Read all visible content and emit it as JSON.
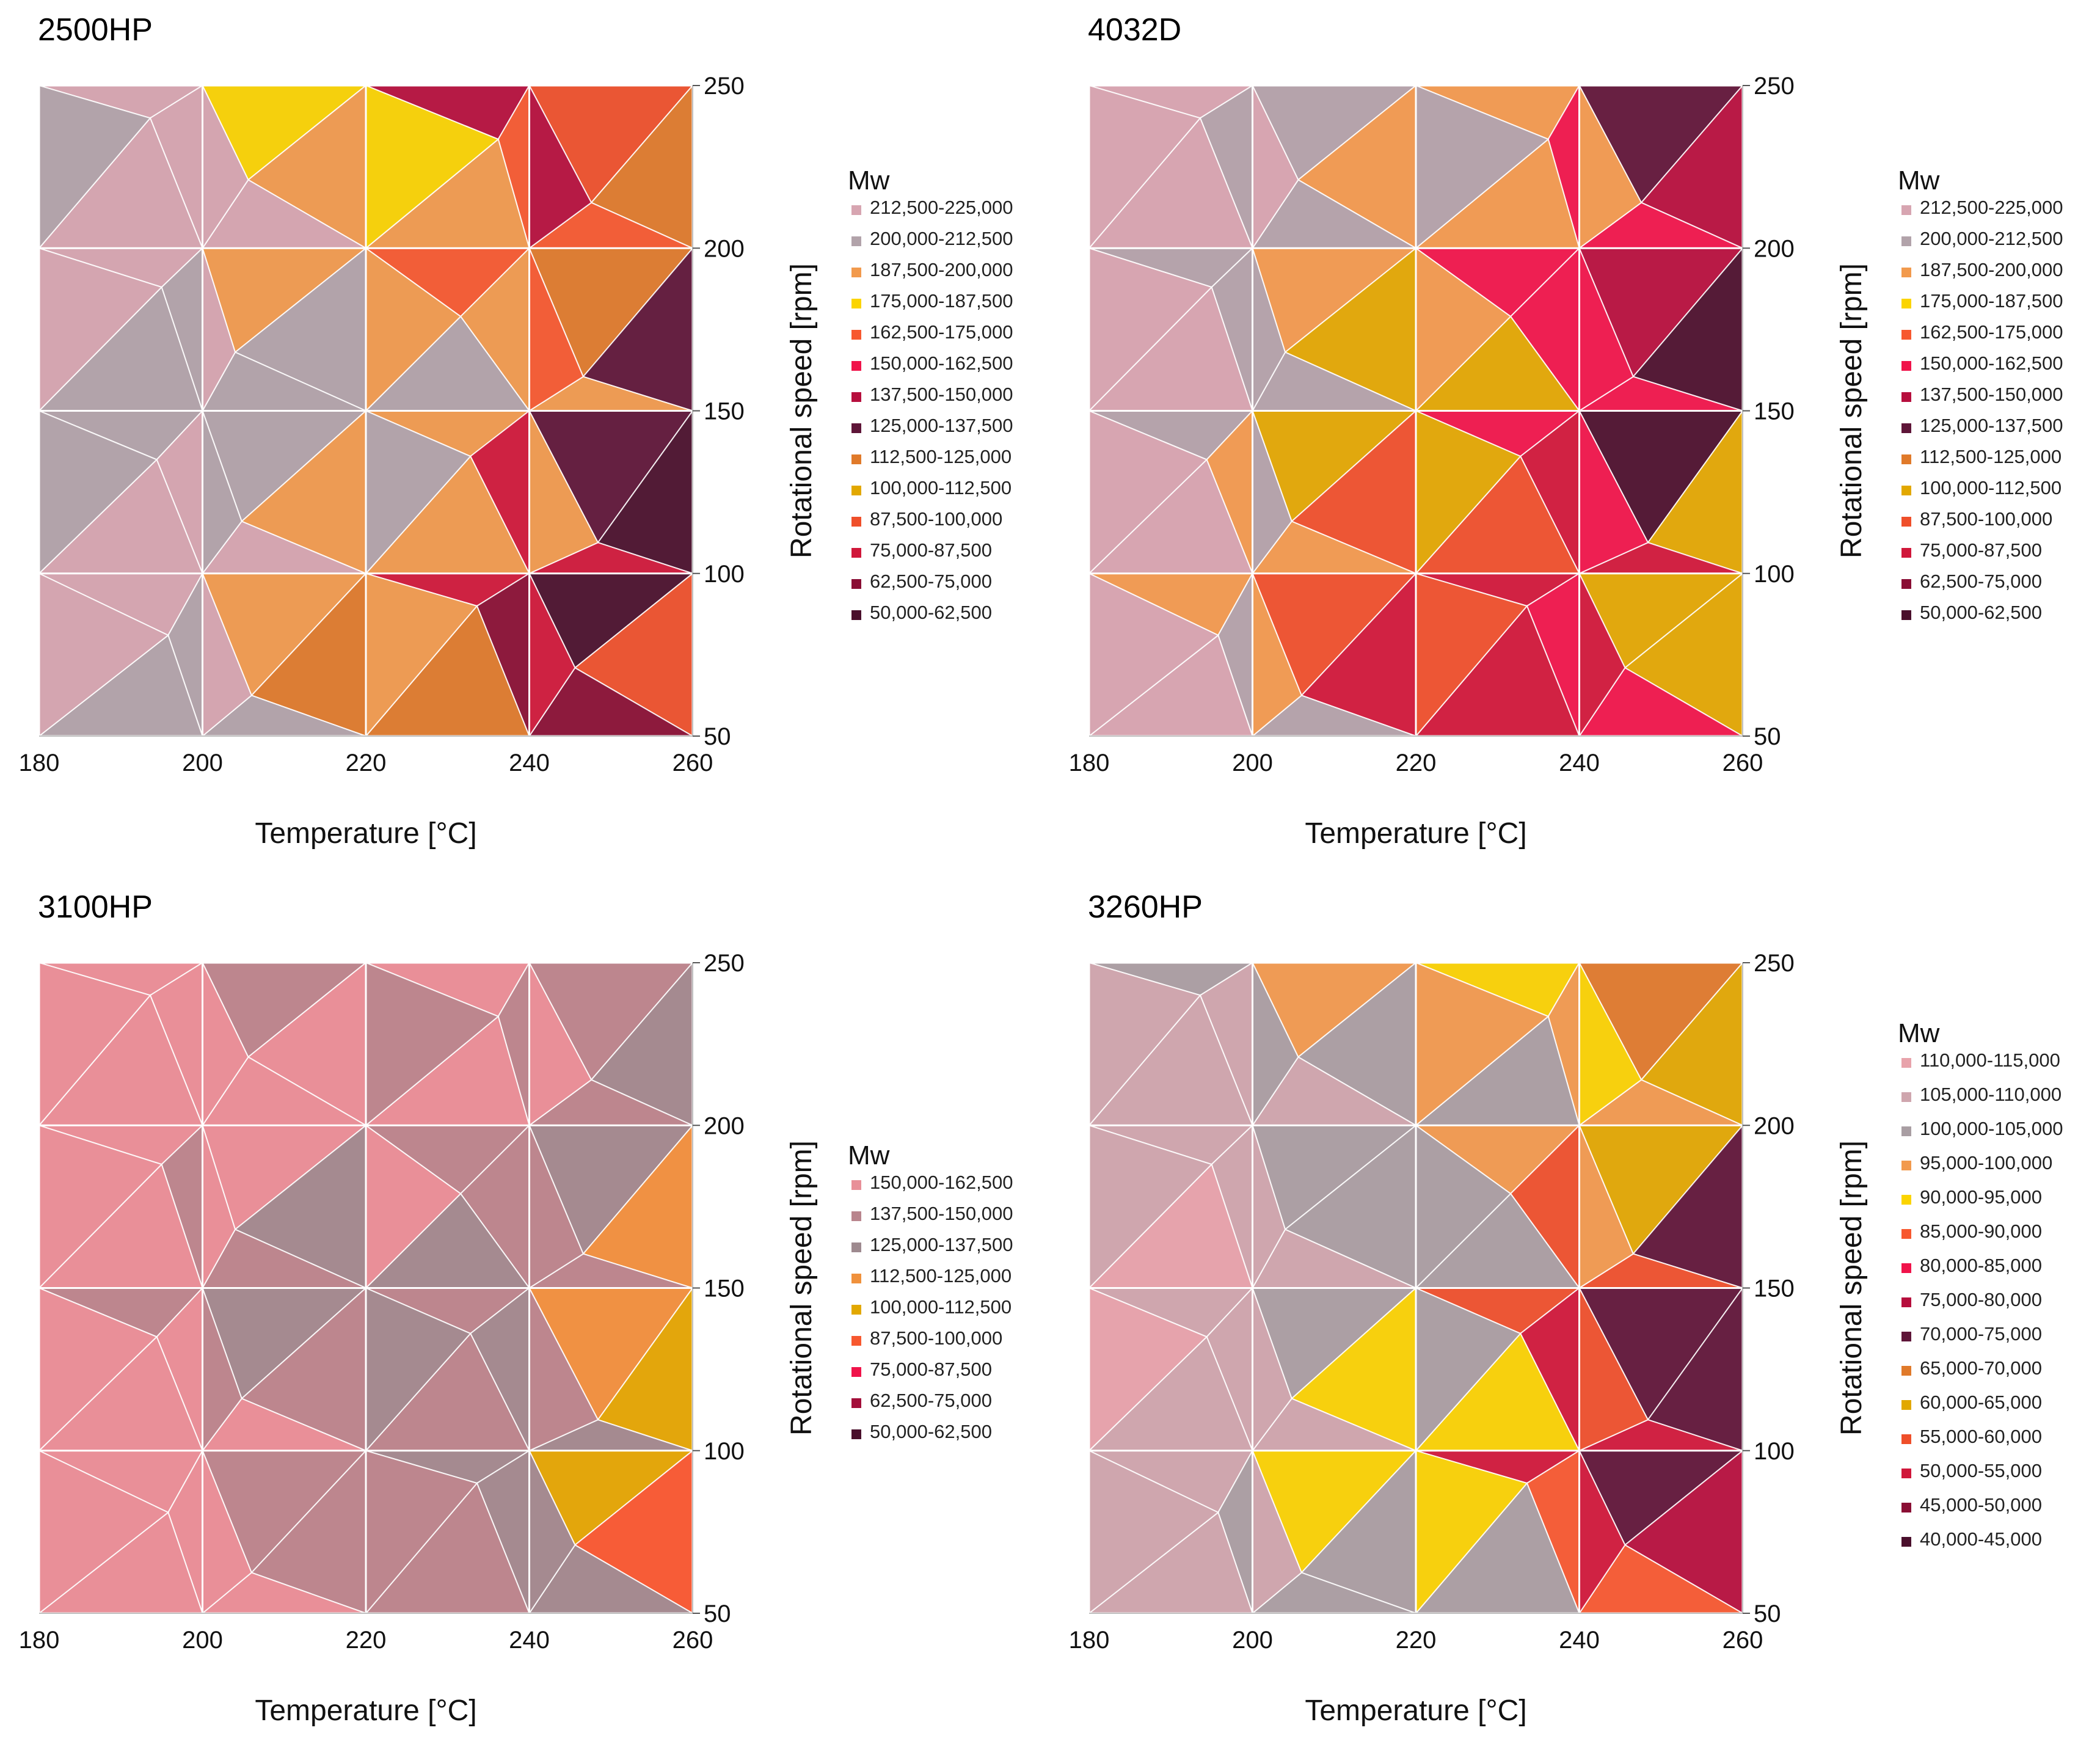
{
  "chart_data": [
    {
      "type": "heatmap",
      "subtype": "contour",
      "title": "2500HP",
      "xlabel": "Temperature [°C]",
      "ylabel": "Rotational speed [rpm]",
      "xlim": [
        180,
        260
      ],
      "ylim": [
        50,
        250
      ],
      "x_ticks": [
        "180",
        "200",
        "220",
        "240",
        "260"
      ],
      "y_ticks": [
        "250",
        "200",
        "150",
        "100",
        "50"
      ],
      "x": [
        180,
        200,
        220,
        240,
        260
      ],
      "y": [
        250,
        200,
        150,
        100,
        50
      ],
      "z_band_index": [
        [
          1,
          0,
          3,
          6,
          10
        ],
        [
          0,
          0,
          2,
          4,
          8
        ],
        [
          1,
          1,
          1,
          2,
          7
        ],
        [
          0,
          0,
          2,
          11,
          13
        ],
        [
          1,
          1,
          8,
          12,
          10
        ]
      ],
      "legend_title": "Mw",
      "legend": [
        {
          "label": "212,500-225,000",
          "color": "#d7a5b1"
        },
        {
          "label": "200,000-212,500",
          "color": "#b2a3aa"
        },
        {
          "label": "187,500-200,000",
          "color": "#f29a4d"
        },
        {
          "label": "175,000-187,500",
          "color": "#fbd400"
        },
        {
          "label": "162,500-175,000",
          "color": "#f7582f"
        },
        {
          "label": "150,000-162,500",
          "color": "#f0134a"
        },
        {
          "label": "137,500-150,000",
          "color": "#b60e3d"
        },
        {
          "label": "125,000-137,500",
          "color": "#5e1538"
        },
        {
          "label": "112,500-125,000",
          "color": "#e07a2a"
        },
        {
          "label": "100,000-112,500",
          "color": "#e2a800"
        },
        {
          "label": "87,500-100,000",
          "color": "#ef4f2a"
        },
        {
          "label": "75,000-87,500",
          "color": "#d0173a"
        },
        {
          "label": "62,500-75,000",
          "color": "#8a0e34"
        },
        {
          "label": "50,000-62,500",
          "color": "#4a0f2c"
        }
      ]
    },
    {
      "type": "heatmap",
      "subtype": "contour",
      "title": "4032D",
      "xlabel": "Temperature [°C]",
      "ylabel": "Rotational speed [rpm]",
      "xlim": [
        180,
        260
      ],
      "ylim": [
        50,
        250
      ],
      "x_ticks": [
        "180",
        "200",
        "220",
        "240",
        "260"
      ],
      "y_ticks": [
        "250",
        "200",
        "150",
        "100",
        "50"
      ],
      "x": [
        180,
        200,
        220,
        240,
        260
      ],
      "y": [
        250,
        200,
        150,
        100,
        50
      ],
      "z_band_index": [
        [
          0,
          0,
          1,
          2,
          7
        ],
        [
          0,
          1,
          2,
          5,
          6
        ],
        [
          0,
          1,
          9,
          5,
          13
        ],
        [
          0,
          2,
          10,
          11,
          9
        ],
        [
          0,
          1,
          11,
          5,
          9
        ]
      ],
      "legend_title": "Mw",
      "legend": [
        {
          "label": "212,500-225,000",
          "color": "#d7a5b1"
        },
        {
          "label": "200,000-212,500",
          "color": "#b2a3aa"
        },
        {
          "label": "187,500-200,000",
          "color": "#f29a4d"
        },
        {
          "label": "175,000-187,500",
          "color": "#fbd400"
        },
        {
          "label": "162,500-175,000",
          "color": "#f7582f"
        },
        {
          "label": "150,000-162,500",
          "color": "#f0134a"
        },
        {
          "label": "137,500-150,000",
          "color": "#b60e3d"
        },
        {
          "label": "125,000-137,500",
          "color": "#5e1538"
        },
        {
          "label": "112,500-125,000",
          "color": "#e07a2a"
        },
        {
          "label": "100,000-112,500",
          "color": "#e2a800"
        },
        {
          "label": "87,500-100,000",
          "color": "#ef4f2a"
        },
        {
          "label": "75,000-87,500",
          "color": "#d0173a"
        },
        {
          "label": "62,500-75,000",
          "color": "#8a0e34"
        },
        {
          "label": "50,000-62,500",
          "color": "#4a0f2c"
        }
      ]
    },
    {
      "type": "heatmap",
      "subtype": "contour",
      "title": "3100HP",
      "xlabel": "Temperature [°C]",
      "ylabel": "Rotational speed [rpm]",
      "xlim": [
        180,
        260
      ],
      "ylim": [
        50,
        250
      ],
      "x_ticks": [
        "180",
        "200",
        "220",
        "240",
        "260"
      ],
      "y_ticks": [
        "250",
        "200",
        "150",
        "100",
        "50"
      ],
      "x": [
        180,
        200,
        220,
        240,
        260
      ],
      "y": [
        250,
        200,
        150,
        100,
        50
      ],
      "z_band_index": [
        [
          0,
          0,
          1,
          0,
          1
        ],
        [
          0,
          0,
          0,
          1,
          2
        ],
        [
          0,
          1,
          2,
          1,
          3
        ],
        [
          0,
          0,
          1,
          2,
          4
        ],
        [
          0,
          0,
          1,
          2,
          5
        ]
      ],
      "legend_title": "Mw",
      "legend": [
        {
          "label": "150,000-162,500",
          "color": "#e88f98"
        },
        {
          "label": "137,500-150,000",
          "color": "#b9858d"
        },
        {
          "label": "125,000-137,500",
          "color": "#9e8a8f"
        },
        {
          "label": "112,500-125,000",
          "color": "#f0913c"
        },
        {
          "label": "100,000-112,500",
          "color": "#e2a800"
        },
        {
          "label": "87,500-100,000",
          "color": "#f7582f"
        },
        {
          "label": "75,000-87,500",
          "color": "#f0134a"
        },
        {
          "label": "62,500-75,000",
          "color": "#a30e3a"
        },
        {
          "label": "50,000-62,500",
          "color": "#4a0f2c"
        }
      ]
    },
    {
      "type": "heatmap",
      "subtype": "contour",
      "title": "3260HP",
      "xlabel": "Temperature [°C]",
      "ylabel": "Rotational speed [rpm]",
      "xlim": [
        180,
        260
      ],
      "ylim": [
        50,
        250
      ],
      "x_ticks": [
        "180",
        "200",
        "220",
        "240",
        "260"
      ],
      "y_ticks": [
        "250",
        "200",
        "150",
        "100",
        "50"
      ],
      "x": [
        180,
        200,
        220,
        240,
        260
      ],
      "y": [
        250,
        200,
        150,
        100,
        50
      ],
      "z_band_index": [
        [
          1,
          2,
          3,
          4,
          9
        ],
        [
          1,
          1,
          2,
          3,
          10
        ],
        [
          0,
          1,
          2,
          11,
          8
        ],
        [
          1,
          1,
          4,
          12,
          8
        ],
        [
          1,
          2,
          2,
          5,
          7
        ]
      ],
      "legend_title": "Mw",
      "legend": [
        {
          "label": "110,000-115,000",
          "color": "#e8a3ab"
        },
        {
          "label": "105,000-110,000",
          "color": "#cfa6ae"
        },
        {
          "label": "100,000-105,000",
          "color": "#a99ea3"
        },
        {
          "label": "95,000-100,000",
          "color": "#f29a4d"
        },
        {
          "label": "90,000-95,000",
          "color": "#fbd400"
        },
        {
          "label": "85,000-90,000",
          "color": "#f7582f"
        },
        {
          "label": "80,000-85,000",
          "color": "#f0134a"
        },
        {
          "label": "75,000-80,000",
          "color": "#b60e3d"
        },
        {
          "label": "70,000-75,000",
          "color": "#5e1538"
        },
        {
          "label": "65,000-70,000",
          "color": "#e07a2a"
        },
        {
          "label": "60,000-65,000",
          "color": "#e2a800"
        },
        {
          "label": "55,000-60,000",
          "color": "#ef4f2a"
        },
        {
          "label": "50,000-55,000",
          "color": "#d0173a"
        },
        {
          "label": "45,000-50,000",
          "color": "#8a0e34"
        },
        {
          "label": "40,000-45,000",
          "color": "#4a0f2c"
        }
      ]
    }
  ]
}
